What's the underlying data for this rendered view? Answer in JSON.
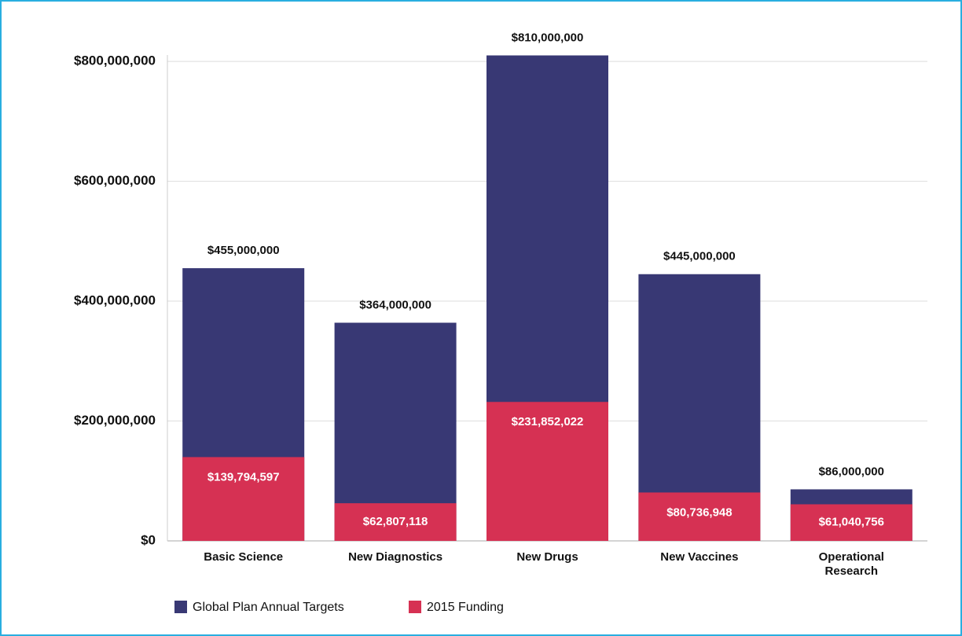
{
  "chart_data": {
    "type": "bar",
    "categories": [
      "Basic Science",
      "New Diagnostics",
      "New Drugs",
      "New Vaccines",
      "Operational Research"
    ],
    "series": [
      {
        "name": "Global Plan Annual Targets",
        "color": "#383874",
        "values": [
          455000000,
          364000000,
          810000000,
          445000000,
          86000000
        ],
        "value_labels": [
          "$455,000,000",
          "$364,000,000",
          "$810,000,000",
          "$445,000,000",
          "$86,000,000"
        ]
      },
      {
        "name": "2015 Funding",
        "color": "#d63153",
        "values": [
          139794597,
          62807118,
          231852022,
          80736948,
          61040756
        ],
        "value_labels": [
          "$139,794,597",
          "$62,807,118",
          "$231,852,022",
          "$80,736,948",
          "$61,040,756"
        ]
      }
    ],
    "ylim": [
      0,
      850000000
    ],
    "yticks": [
      {
        "value": 0,
        "label": "$0"
      },
      {
        "value": 200000000,
        "label": "$200,000,000"
      },
      {
        "value": 400000000,
        "label": "$400,000,000"
      },
      {
        "value": 600000000,
        "label": "$600,000,000"
      },
      {
        "value": 800000000,
        "label": "$800,000,000"
      }
    ],
    "grid": true,
    "legend": "bottom left"
  }
}
